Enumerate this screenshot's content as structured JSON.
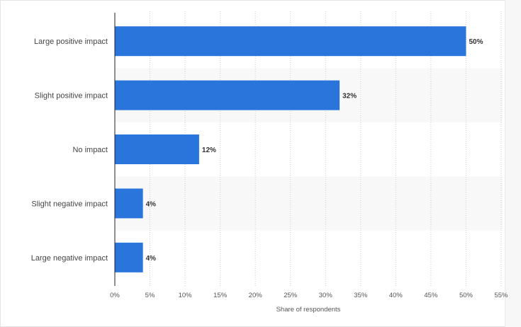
{
  "chart_data": {
    "type": "bar",
    "orientation": "horizontal",
    "categories": [
      "Large positive impact",
      "Slight positive impact",
      "No impact",
      "Slight negative impact",
      "Large negative impact"
    ],
    "values": [
      50,
      32,
      12,
      4,
      4
    ],
    "value_labels": [
      "50%",
      "32%",
      "12%",
      "4%",
      "4%"
    ],
    "title": "",
    "xlabel": "Share of respondents",
    "ylabel": "",
    "xlim": [
      0,
      55
    ],
    "xticks": [
      0,
      5,
      10,
      15,
      20,
      25,
      30,
      35,
      40,
      45,
      50,
      55
    ],
    "xtick_labels": [
      "0%",
      "5%",
      "10%",
      "15%",
      "20%",
      "25%",
      "30%",
      "35%",
      "40%",
      "45%",
      "50%",
      "55%"
    ],
    "grid": "vertical-dotted",
    "bar_color": "#2a75dc",
    "band_color": "#f8f8f8"
  }
}
